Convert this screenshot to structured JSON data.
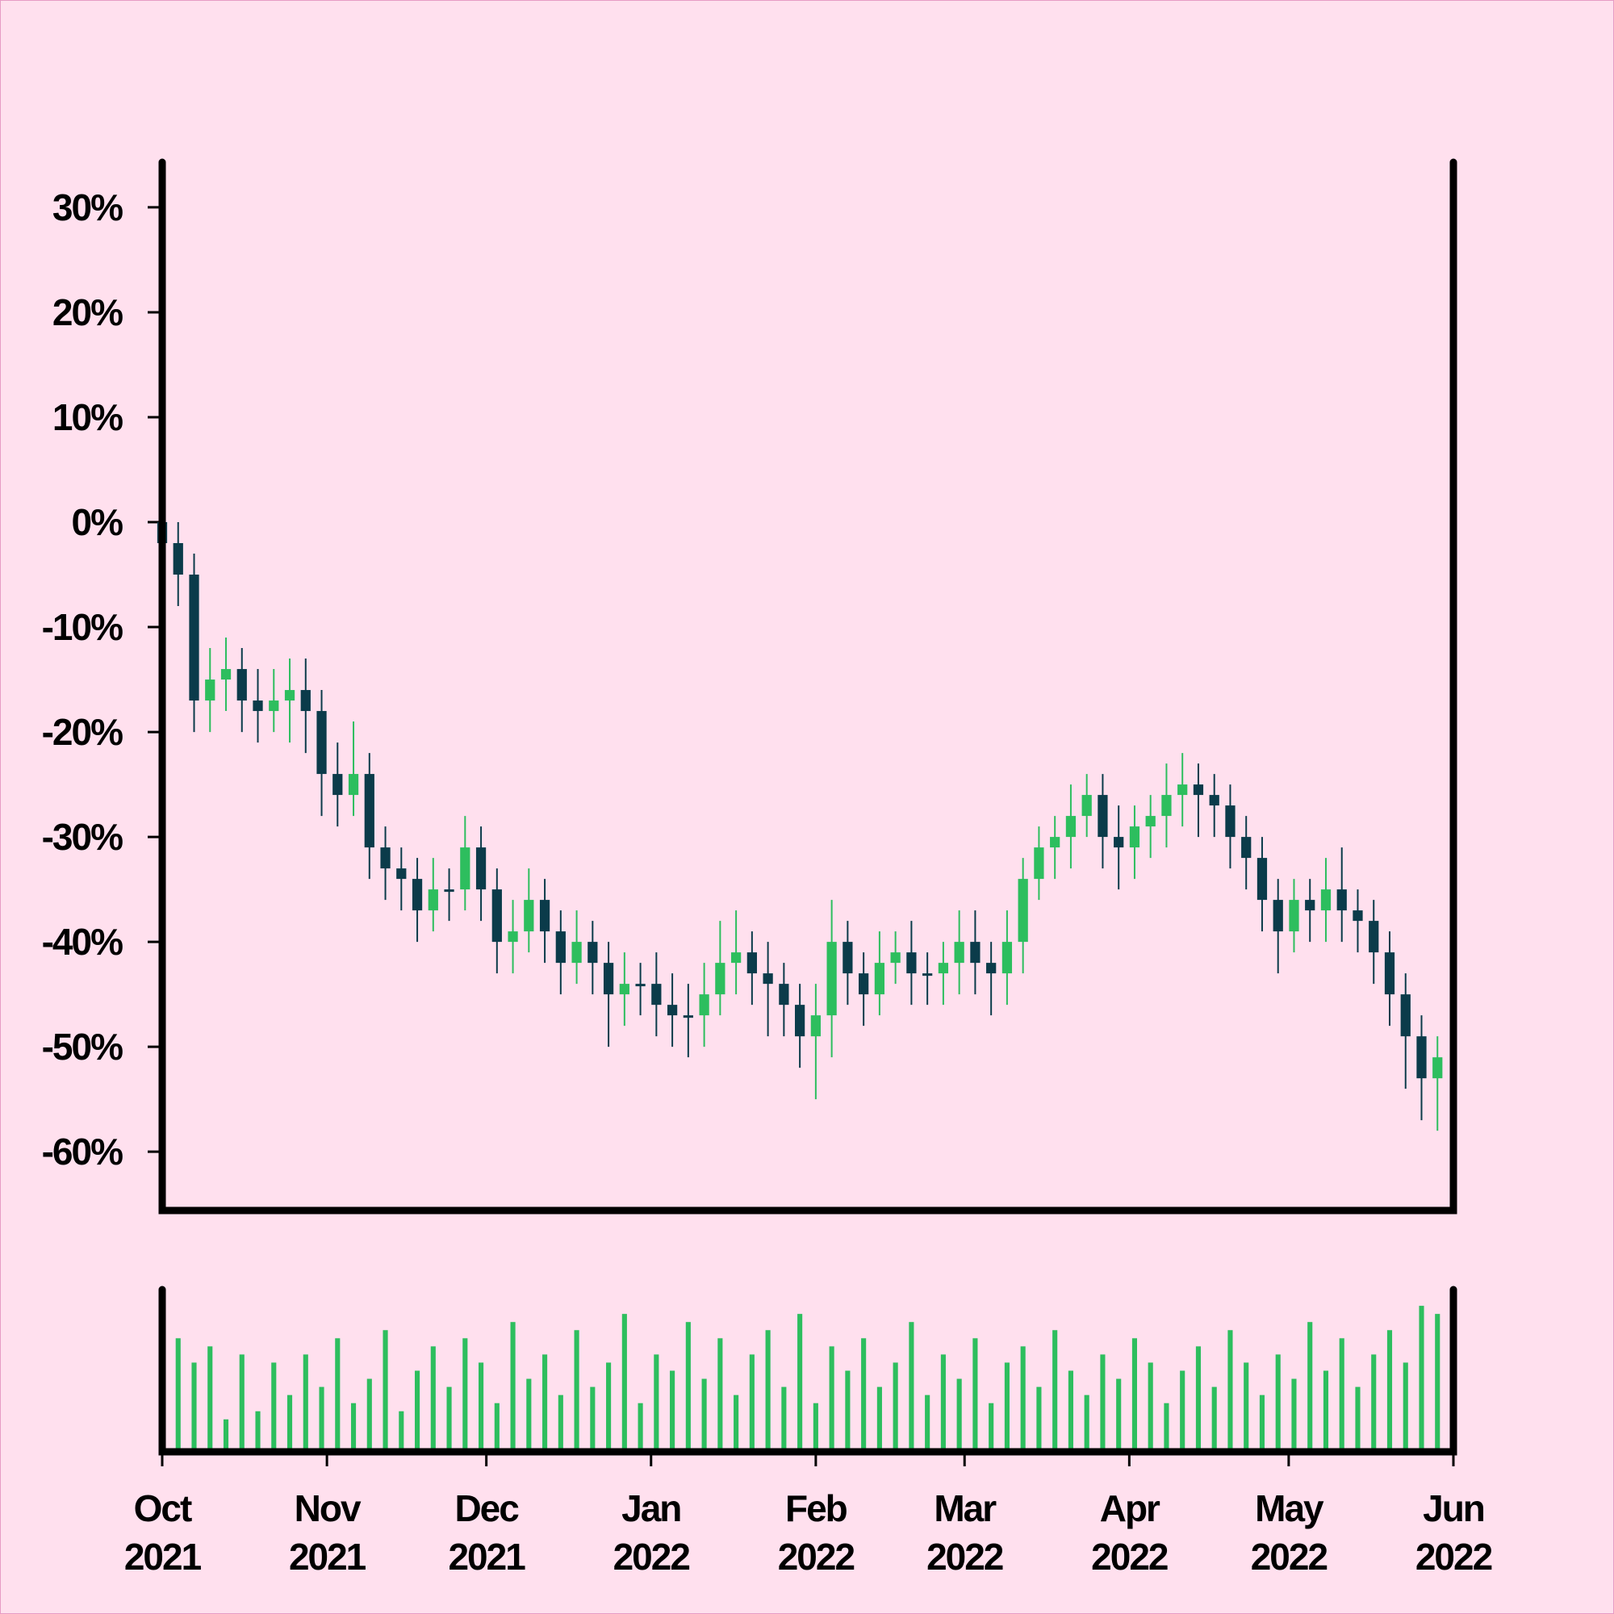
{
  "chart_data": {
    "type": "candlestick",
    "up_color": "#2dbe5e",
    "down_color": "#0b3b4a",
    "volume_color": "#2dbe5e",
    "x": [
      0,
      3,
      6,
      9,
      12,
      15,
      18,
      21,
      24,
      27,
      30,
      33,
      36,
      39,
      42,
      45,
      48,
      51,
      54,
      57,
      60,
      63,
      66,
      69,
      72,
      75,
      78,
      81,
      84,
      87,
      90,
      93,
      96,
      99,
      102,
      105,
      108,
      111,
      114,
      117,
      120,
      123,
      126,
      129,
      132,
      135,
      138,
      141,
      144,
      147,
      150,
      153,
      156,
      159,
      162,
      165,
      168,
      171,
      174,
      177,
      180,
      183,
      186,
      189,
      192,
      195,
      198,
      201,
      204,
      207,
      210,
      213,
      216,
      219,
      222,
      225,
      228,
      231,
      234,
      237,
      240
    ],
    "open": [
      0,
      -2,
      -5,
      -17,
      -15,
      -14,
      -17,
      -18,
      -17,
      -16,
      -18,
      -24,
      -26,
      -24,
      -31,
      -33,
      -34,
      -37,
      -35,
      -35,
      -31,
      -35,
      -40,
      -39,
      -36,
      -39,
      -42,
      -40,
      -42,
      -45,
      -44,
      -44,
      -46,
      -47,
      -47,
      -45,
      -42,
      -41,
      -43,
      -44,
      -46,
      -49,
      -47,
      -40,
      -43,
      -45,
      -42,
      -41,
      -43,
      -43,
      -42,
      -40,
      -42,
      -43,
      -40,
      -34,
      -31,
      -30,
      -28,
      -26,
      -30,
      -31,
      -29,
      -28,
      -26,
      -25,
      -26,
      -27,
      -30,
      -32,
      -36,
      -39,
      -36,
      -37,
      -35,
      -37,
      -38,
      -41,
      -45,
      -49,
      -53
    ],
    "high": [
      1,
      0,
      -3,
      -12,
      -11,
      -12,
      -14,
      -14,
      -13,
      -13,
      -16,
      -21,
      -19,
      -22,
      -29,
      -31,
      -32,
      -32,
      -33,
      -28,
      -29,
      -33,
      -36,
      -33,
      -34,
      -37,
      -37,
      -38,
      -40,
      -41,
      -42,
      -41,
      -43,
      -44,
      -42,
      -38,
      -37,
      -39,
      -40,
      -42,
      -44,
      -44,
      -36,
      -38,
      -41,
      -39,
      -39,
      -38,
      -41,
      -40,
      -37,
      -37,
      -40,
      -37,
      -32,
      -29,
      -28,
      -25,
      -24,
      -24,
      -27,
      -27,
      -26,
      -23,
      -22,
      -23,
      -24,
      -25,
      -28,
      -30,
      -34,
      -34,
      -34,
      -32,
      -31,
      -35,
      -36,
      -39,
      -43,
      -47,
      -49
    ],
    "low": [
      -5,
      -8,
      -20,
      -20,
      -18,
      -20,
      -21,
      -20,
      -21,
      -22,
      -28,
      -29,
      -28,
      -34,
      -36,
      -37,
      -40,
      -39,
      -38,
      -37,
      -38,
      -43,
      -43,
      -41,
      -42,
      -45,
      -44,
      -45,
      -50,
      -48,
      -47,
      -49,
      -50,
      -51,
      -50,
      -47,
      -45,
      -46,
      -49,
      -49,
      -52,
      -55,
      -51,
      -46,
      -48,
      -47,
      -44,
      -46,
      -46,
      -46,
      -45,
      -45,
      -47,
      -46,
      -43,
      -36,
      -34,
      -33,
      -30,
      -33,
      -35,
      -34,
      -32,
      -31,
      -29,
      -30,
      -30,
      -33,
      -35,
      -39,
      -43,
      -41,
      -40,
      -40,
      -40,
      -41,
      -44,
      -48,
      -54,
      -57,
      -58
    ],
    "close": [
      -2,
      -5,
      -17,
      -15,
      -14,
      -17,
      -18,
      -17,
      -16,
      -18,
      -24,
      -26,
      -24,
      -31,
      -33,
      -34,
      -37,
      -35,
      -35,
      -31,
      -35,
      -40,
      -39,
      -36,
      -39,
      -42,
      -40,
      -42,
      -45,
      -44,
      -44,
      -46,
      -47,
      -47,
      -45,
      -42,
      -41,
      -43,
      -44,
      -46,
      -49,
      -47,
      -40,
      -43,
      -45,
      -42,
      -41,
      -43,
      -43,
      -42,
      -40,
      -42,
      -43,
      -40,
      -34,
      -31,
      -30,
      -28,
      -26,
      -30,
      -31,
      -29,
      -28,
      -26,
      -25,
      -26,
      -27,
      -30,
      -32,
      -36,
      -39,
      -36,
      -37,
      -35,
      -37,
      -38,
      -41,
      -45,
      -49,
      -53,
      -51
    ],
    "volume": [
      30,
      70,
      55,
      65,
      20,
      60,
      25,
      55,
      35,
      60,
      40,
      70,
      30,
      45,
      75,
      25,
      50,
      65,
      40,
      70,
      55,
      30,
      80,
      45,
      60,
      35,
      75,
      40,
      55,
      85,
      30,
      60,
      50,
      80,
      45,
      70,
      35,
      60,
      75,
      40,
      85,
      30,
      65,
      50,
      70,
      40,
      55,
      80,
      35,
      60,
      45,
      70,
      30,
      55,
      65,
      40,
      75,
      50,
      35,
      60,
      45,
      70,
      55,
      30,
      50,
      65,
      40,
      75,
      55,
      35,
      60,
      45,
      80,
      50,
      70,
      40,
      60,
      75,
      55,
      90,
      85
    ],
    "volume_lim": [
      0,
      100
    ],
    "xlim": [
      0,
      243
    ],
    "xticks": [
      {
        "value": 0,
        "label": "Oct\n2021"
      },
      {
        "value": 31,
        "label": "Nov\n2021"
      },
      {
        "value": 61,
        "label": "Dec\n2021"
      },
      {
        "value": 92,
        "label": "Jan\n2022"
      },
      {
        "value": 123,
        "label": "Feb\n2022"
      },
      {
        "value": 151,
        "label": "Mar\n2022"
      },
      {
        "value": 182,
        "label": "Apr\n2022"
      },
      {
        "value": 212,
        "label": "May\n2022"
      },
      {
        "value": 243,
        "label": "Jun\n2022"
      }
    ],
    "ylim": [
      -65.6,
      34.3
    ],
    "yticks": [
      {
        "value": 30,
        "label": "30%"
      },
      {
        "value": 20,
        "label": "20%"
      },
      {
        "value": 10,
        "label": "10%"
      },
      {
        "value": 0,
        "label": "0%"
      },
      {
        "value": -10,
        "label": "-10%"
      },
      {
        "value": -20,
        "label": "-20%"
      },
      {
        "value": -30,
        "label": "-30%"
      },
      {
        "value": -40,
        "label": "-40%"
      },
      {
        "value": -50,
        "label": "-50%"
      },
      {
        "value": -60,
        "label": "-60%"
      }
    ]
  }
}
